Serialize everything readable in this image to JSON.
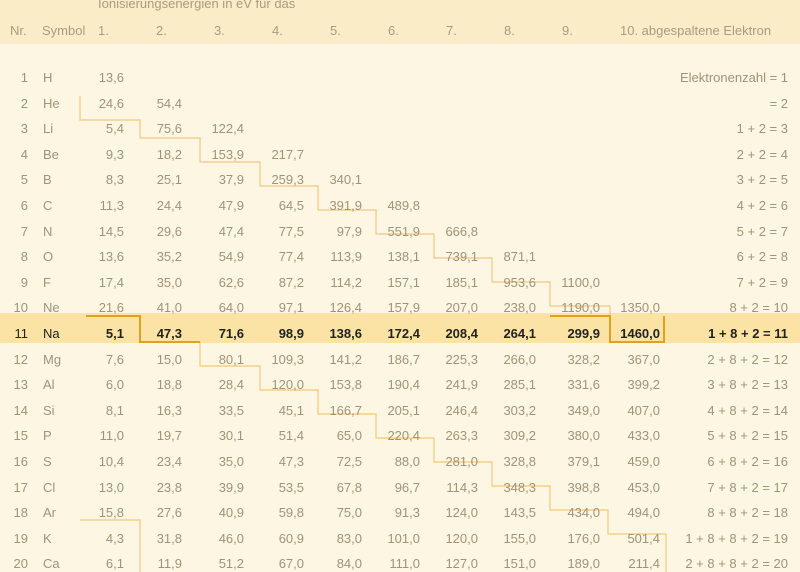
{
  "table": {
    "group_title": "Ionisierungsenergien in eV für das",
    "headers": {
      "nr": "Nr.",
      "symbol": "Symbol",
      "cols": [
        "1.",
        "2.",
        "3.",
        "4.",
        "5.",
        "6.",
        "7.",
        "8.",
        "9.",
        "10. abgespaltene Elektron"
      ]
    },
    "highlighted_row": 11,
    "rows": [
      {
        "nr": "1",
        "sym": "H",
        "vals": [
          "13,6",
          "",
          "",
          "",
          "",
          "",
          "",
          "",
          "",
          ""
        ],
        "right": "Elektronenzahl =  1"
      },
      {
        "nr": "2",
        "sym": "He",
        "vals": [
          "24,6",
          "54,4",
          "",
          "",
          "",
          "",
          "",
          "",
          "",
          ""
        ],
        "right": "=  2"
      },
      {
        "nr": "3",
        "sym": "Li",
        "vals": [
          "5,4",
          "75,6",
          "122,4",
          "",
          "",
          "",
          "",
          "",
          "",
          ""
        ],
        "right": "1 + 2 =  3"
      },
      {
        "nr": "4",
        "sym": "Be",
        "vals": [
          "9,3",
          "18,2",
          "153,9",
          "217,7",
          "",
          "",
          "",
          "",
          "",
          ""
        ],
        "right": "2 + 2 =  4"
      },
      {
        "nr": "5",
        "sym": "B",
        "vals": [
          "8,3",
          "25,1",
          "37,9",
          "259,3",
          "340,1",
          "",
          "",
          "",
          "",
          ""
        ],
        "right": "3 + 2 =  5"
      },
      {
        "nr": "6",
        "sym": "C",
        "vals": [
          "11,3",
          "24,4",
          "47,9",
          "64,5",
          "391,9",
          "489,8",
          "",
          "",
          "",
          ""
        ],
        "right": "4 + 2 =  6"
      },
      {
        "nr": "7",
        "sym": "N",
        "vals": [
          "14,5",
          "29,6",
          "47,4",
          "77,5",
          "97,9",
          "551,9",
          "666,8",
          "",
          "",
          ""
        ],
        "right": "5 + 2 =  7"
      },
      {
        "nr": "8",
        "sym": "O",
        "vals": [
          "13,6",
          "35,2",
          "54,9",
          "77,4",
          "113,9",
          "138,1",
          "739,1",
          "871,1",
          "",
          ""
        ],
        "right": "6 + 2 =  8"
      },
      {
        "nr": "9",
        "sym": "F",
        "vals": [
          "17,4",
          "35,0",
          "62,6",
          "87,2",
          "114,2",
          "157,1",
          "185,1",
          "953,6",
          "1100,0",
          ""
        ],
        "right": "7 + 2 =  9"
      },
      {
        "nr": "10",
        "sym": "Ne",
        "vals": [
          "21,6",
          "41,0",
          "64,0",
          "97,1",
          "126,4",
          "157,9",
          "207,0",
          "238,0",
          "1190,0",
          "1350,0"
        ],
        "right": "8 + 2 = 10"
      },
      {
        "nr": "11",
        "sym": "Na",
        "vals": [
          "5,1",
          "47,3",
          "71,6",
          "98,9",
          "138,6",
          "172,4",
          "208,4",
          "264,1",
          "299,9",
          "1460,0"
        ],
        "right": "1 + 8 + 2 = 11"
      },
      {
        "nr": "12",
        "sym": "Mg",
        "vals": [
          "7,6",
          "15,0",
          "80,1",
          "109,3",
          "141,2",
          "186,7",
          "225,3",
          "266,0",
          "328,2",
          "367,0"
        ],
        "right": "2 + 8 + 2 = 12"
      },
      {
        "nr": "13",
        "sym": "Al",
        "vals": [
          "6,0",
          "18,8",
          "28,4",
          "120,0",
          "153,8",
          "190,4",
          "241,9",
          "285,1",
          "331,6",
          "399,2"
        ],
        "right": "3 + 8 + 2 = 13"
      },
      {
        "nr": "14",
        "sym": "Si",
        "vals": [
          "8,1",
          "16,3",
          "33,5",
          "45,1",
          "166,7",
          "205,1",
          "246,4",
          "303,2",
          "349,0",
          "407,0"
        ],
        "right": "4 + 8 + 2 = 14"
      },
      {
        "nr": "15",
        "sym": "P",
        "vals": [
          "11,0",
          "19,7",
          "30,1",
          "51,4",
          "65,0",
          "220,4",
          "263,3",
          "309,2",
          "380,0",
          "433,0"
        ],
        "right": "5 + 8 + 2 = 15"
      },
      {
        "nr": "16",
        "sym": "S",
        "vals": [
          "10,4",
          "23,4",
          "35,0",
          "47,3",
          "72,5",
          "88,0",
          "281,0",
          "328,8",
          "379,1",
          "459,0"
        ],
        "right": "6 + 8 + 2 = 16"
      },
      {
        "nr": "17",
        "sym": "Cl",
        "vals": [
          "13,0",
          "23,8",
          "39,9",
          "53,5",
          "67,8",
          "96,7",
          "114,3",
          "348,3",
          "398,8",
          "453,0"
        ],
        "right": "7 + 8 + 2 = 17"
      },
      {
        "nr": "18",
        "sym": "Ar",
        "vals": [
          "15,8",
          "27,6",
          "40,9",
          "59,8",
          "75,0",
          "91,3",
          "124,0",
          "143,5",
          "434,0",
          "494,0"
        ],
        "right": "8 + 8 + 2 = 18"
      },
      {
        "nr": "19",
        "sym": "K",
        "vals": [
          "4,3",
          "31,8",
          "46,0",
          "60,9",
          "83,0",
          "101,0",
          "120,0",
          "155,0",
          "176,0",
          "501,4"
        ],
        "right": "1 + 8 + 8 + 2 = 19"
      },
      {
        "nr": "20",
        "sym": "Ca",
        "vals": [
          "6,1",
          "11,9",
          "51,2",
          "67,0",
          "84,0",
          "111,0",
          "127,0",
          "151,0",
          "189,0",
          "211,4"
        ],
        "right": "2 + 8 + 8 + 2 = 20"
      }
    ]
  }
}
